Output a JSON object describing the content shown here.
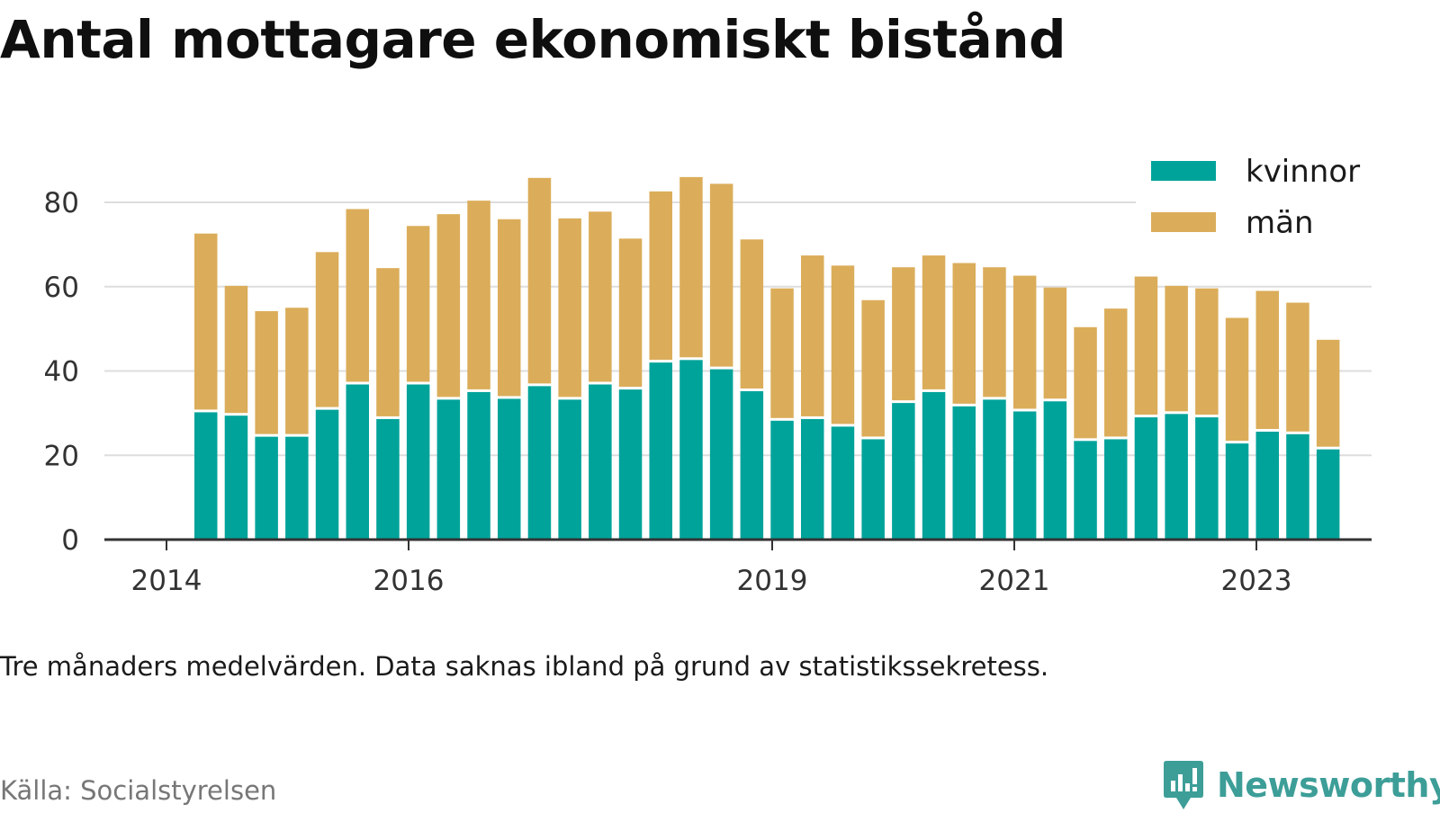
{
  "title": "Antal mottagare ekonomiskt bistånd",
  "note": "Tre månaders medelvärden. Data saknas ibland på grund av statistikssekretess.",
  "source": "Källa: Socialstyrelsen",
  "brand": "Newsworthy",
  "colors": {
    "women": "#00a39a",
    "men": "#dbad5a",
    "grid": "#dddddd",
    "axis": "#333333",
    "brand": "#3d9e98"
  },
  "chart_data": {
    "type": "bar",
    "stacked": true,
    "title": "Antal mottagare ekonomiskt bistånd",
    "xlabel": "",
    "ylabel": "",
    "ylim": [
      0,
      88
    ],
    "yticks": [
      0,
      20,
      40,
      60,
      80
    ],
    "xticks": [
      "2014",
      "2016",
      "2019",
      "2021",
      "2023"
    ],
    "grid": true,
    "legend": "top-right",
    "series": [
      {
        "name": "kvinnor",
        "values": [
          30.2,
          29.4,
          24.4,
          24.4,
          30.8,
          36.8,
          28.6,
          36.8,
          33.2,
          35.0,
          33.4,
          36.4,
          33.2,
          36.8,
          35.6,
          42.0,
          42.6,
          40.4,
          35.2,
          28.2,
          28.6,
          26.8,
          23.8,
          32.4,
          35.0,
          31.6,
          33.2,
          30.4,
          32.8,
          23.4,
          23.8,
          29.0,
          29.8,
          29.0,
          22.8,
          25.6,
          25.0,
          21.4
        ]
      },
      {
        "name": "män",
        "values": [
          42.4,
          30.8,
          29.8,
          30.6,
          37.4,
          41.6,
          35.8,
          37.6,
          44.0,
          45.4,
          42.6,
          49.4,
          43.0,
          41.0,
          35.8,
          40.6,
          43.4,
          44.0,
          36.0,
          31.4,
          38.8,
          38.2,
          33.0,
          32.2,
          32.4,
          34.0,
          31.4,
          32.2,
          27.0,
          27.0,
          31.0,
          33.4,
          30.4,
          30.6,
          29.8,
          33.4,
          31.2,
          26.0
        ]
      }
    ]
  }
}
